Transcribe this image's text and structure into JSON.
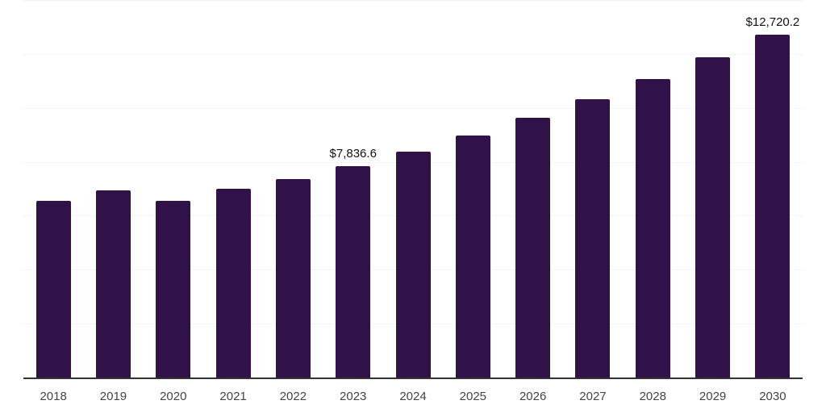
{
  "chart_data": {
    "type": "bar",
    "title": "",
    "xlabel": "",
    "ylabel": "",
    "categories": [
      "2018",
      "2019",
      "2020",
      "2021",
      "2022",
      "2023",
      "2024",
      "2025",
      "2026",
      "2027",
      "2028",
      "2029",
      "2030"
    ],
    "values": [
      6560,
      6940,
      6550,
      7010,
      7360,
      7836.6,
      8390,
      8980,
      9620,
      10310,
      11070,
      11880,
      12720.2
    ],
    "annotations": [
      {
        "index": 5,
        "text": "$7,836.6"
      },
      {
        "index": 12,
        "text": "$12,720.2"
      }
    ],
    "ylim": [
      0,
      14000
    ],
    "gridline_interval": 2000,
    "grid": true,
    "legend": false,
    "y_tick_labels_visible": false
  },
  "colors": {
    "bar": "#301248",
    "axis": "#333333",
    "gridline": "#f3f3f5",
    "tick_label": "#444444",
    "annotation": "#111111",
    "background": "#ffffff"
  }
}
